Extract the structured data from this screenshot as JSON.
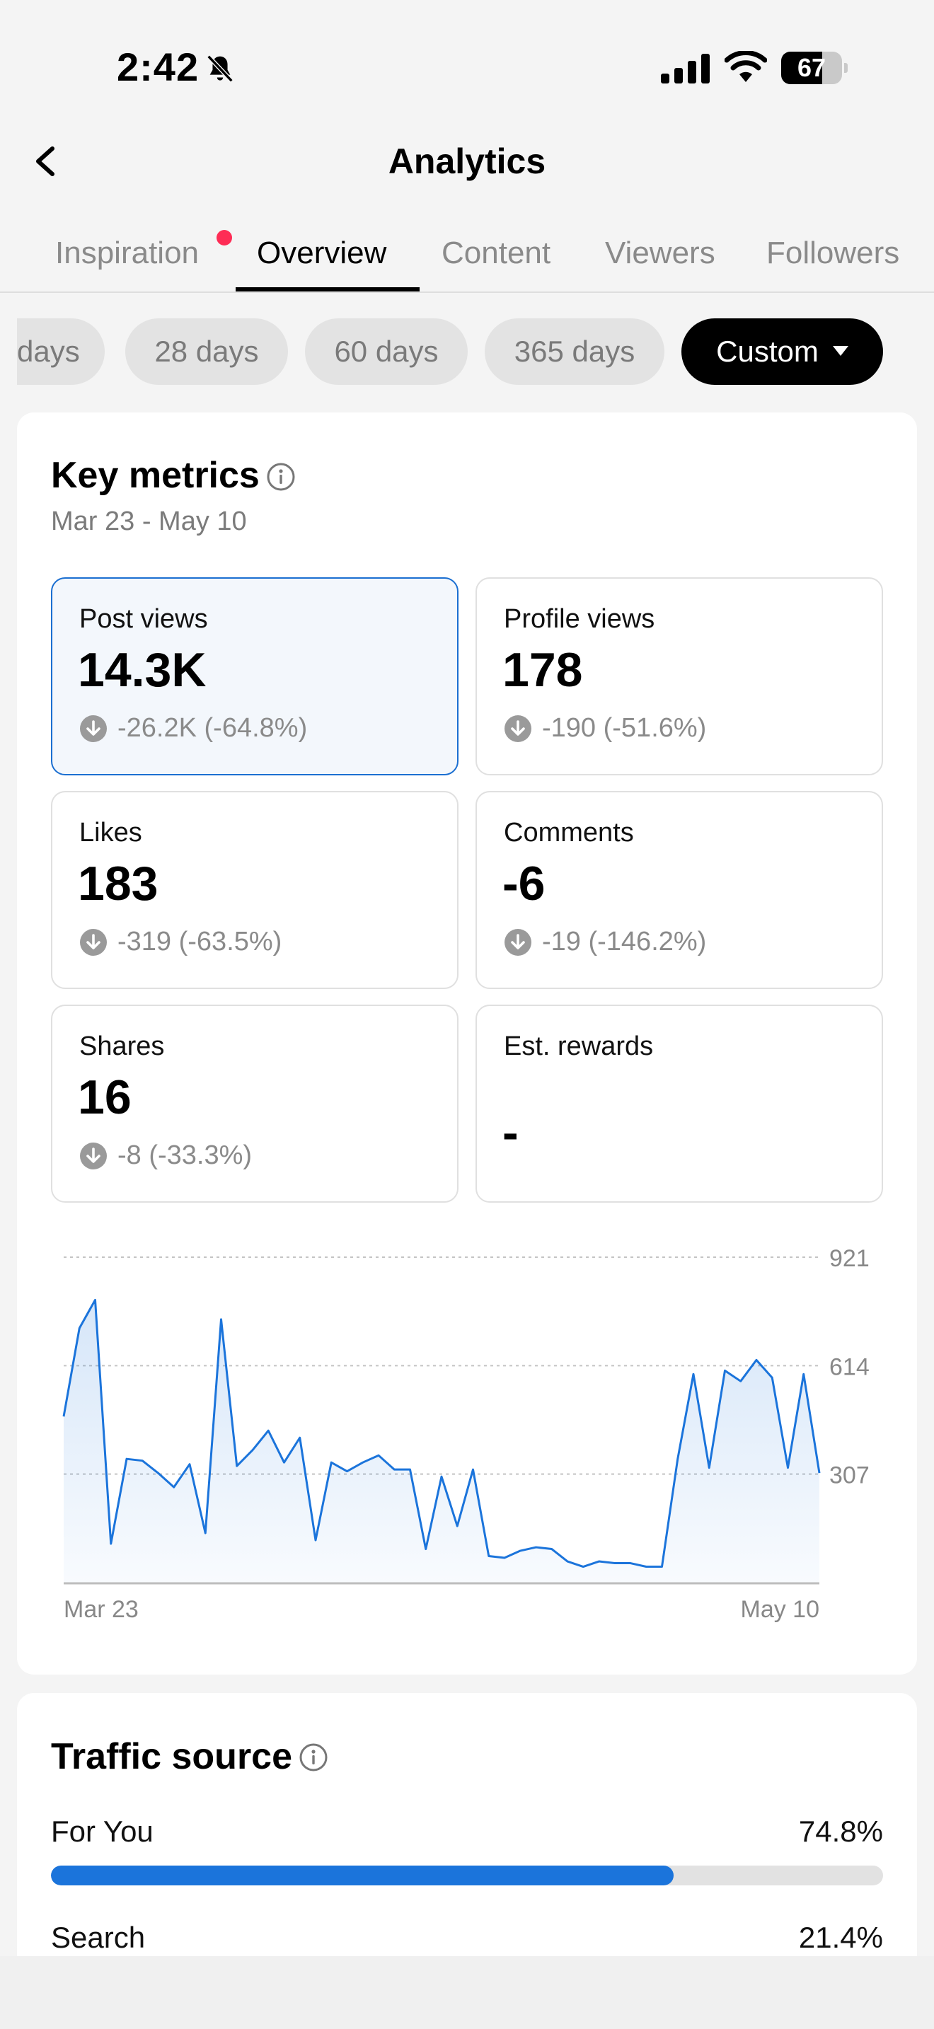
{
  "status_bar": {
    "time": "2:42",
    "battery": "67",
    "battery_level": 0.67
  },
  "header": {
    "title": "Analytics"
  },
  "tabs": [
    {
      "label": "Inspiration",
      "has_notification": true
    },
    {
      "label": "Overview",
      "active": true
    },
    {
      "label": "Content"
    },
    {
      "label": "Viewers"
    },
    {
      "label": "Followers"
    }
  ],
  "filters": [
    {
      "label": "days"
    },
    {
      "label": "28 days"
    },
    {
      "label": "60 days"
    },
    {
      "label": "365 days"
    },
    {
      "label": "Custom",
      "active": true
    }
  ],
  "key_metrics": {
    "title": "Key metrics",
    "date_range": "Mar 23 - May 10",
    "metrics": [
      {
        "label": "Post views",
        "value": "14.3K",
        "change": "-26.2K (-64.8%)",
        "selected": true
      },
      {
        "label": "Profile views",
        "value": "178",
        "change": "-190 (-51.6%)"
      },
      {
        "label": "Likes",
        "value": "183",
        "change": "-319 (-63.5%)"
      },
      {
        "label": "Comments",
        "value": "-6",
        "change": "-19 (-146.2%)"
      },
      {
        "label": "Shares",
        "value": "16",
        "change": "-8 (-33.3%)"
      },
      {
        "label": "Est. rewards",
        "value": "-",
        "change": ""
      }
    ]
  },
  "chart_data": {
    "type": "area",
    "series": [
      {
        "values": [
          470,
          720,
          800,
          110,
          350,
          345,
          310,
          270,
          335,
          140,
          745,
          330,
          375,
          430,
          340,
          410,
          120,
          340,
          315,
          340,
          360,
          320,
          320,
          95,
          300,
          160,
          320,
          75,
          70,
          90,
          100,
          95,
          60,
          45,
          60,
          55,
          55,
          45,
          45,
          350,
          590,
          325,
          600,
          570,
          630,
          580,
          325,
          590,
          310
        ]
      }
    ],
    "x_labels": [
      "Mar 23",
      "May 10"
    ],
    "y_ticks": [
      307,
      614,
      921
    ],
    "ylim": [
      0,
      921
    ],
    "grid": true,
    "color": "#1b74db"
  },
  "traffic_source": {
    "title": "Traffic source",
    "rows": [
      {
        "label": "For You",
        "value": "74.8%",
        "fraction": 0.748
      },
      {
        "label": "Search",
        "value": "21.4%",
        "fraction": 0.214
      }
    ]
  }
}
